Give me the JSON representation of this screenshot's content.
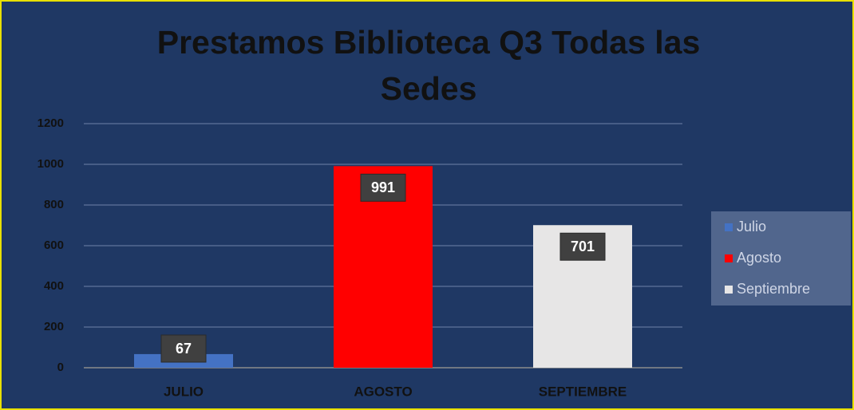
{
  "chart_data": {
    "type": "bar",
    "title": "Prestamos Biblioteca Q3 Todas las Sedes",
    "categories": [
      "JULIO",
      "AGOSTO",
      "SEPTIEMBRE"
    ],
    "values": [
      67,
      991,
      701
    ],
    "colors": [
      "#4472c4",
      "#ff0000",
      "#e7e6e6"
    ],
    "legend": [
      "Julio",
      "Agosto",
      "Septiembre"
    ],
    "ylim": [
      0,
      1200
    ],
    "yticks": [
      0,
      200,
      400,
      600,
      800,
      1000,
      1200
    ],
    "grid": true
  }
}
